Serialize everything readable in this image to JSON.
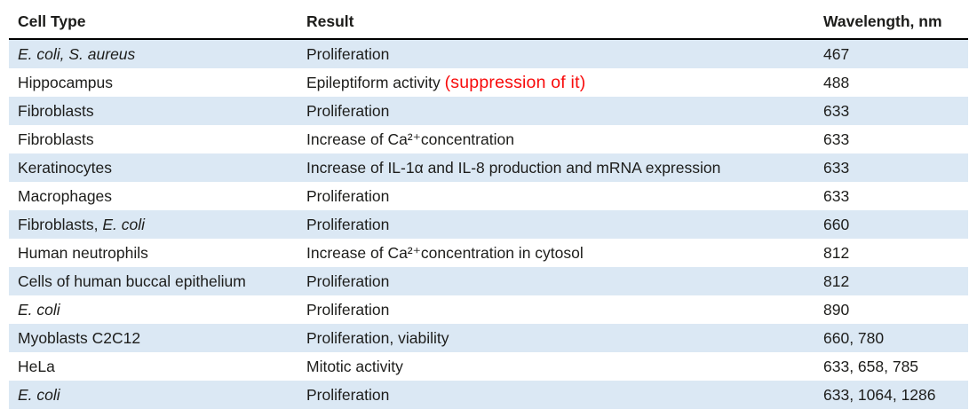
{
  "table": {
    "columns": [
      {
        "label": "Cell Type"
      },
      {
        "label": "Result"
      },
      {
        "label": "Wavelength, nm"
      }
    ],
    "rows": [
      {
        "cell_type": [
          {
            "t": "E. coli, S. aureus",
            "st": "i"
          }
        ],
        "result": [
          {
            "t": "Proliferation"
          }
        ],
        "wavelength": "467"
      },
      {
        "cell_type": [
          {
            "t": "Hippocampus"
          }
        ],
        "result": [
          {
            "t": "Epileptiform activity "
          },
          {
            "t": "(suppression of it)",
            "st": "red"
          }
        ],
        "wavelength": "488"
      },
      {
        "cell_type": [
          {
            "t": "Fibroblasts"
          }
        ],
        "result": [
          {
            "t": "Proliferation"
          }
        ],
        "wavelength": "633"
      },
      {
        "cell_type": [
          {
            "t": "Fibroblasts"
          }
        ],
        "result": [
          {
            "t": "Increase of Ca²⁺concentration"
          }
        ],
        "wavelength": "633"
      },
      {
        "cell_type": [
          {
            "t": "Keratinocytes"
          }
        ],
        "result": [
          {
            "t": "Increase of IL-1α and IL-8 production and mRNA expression"
          }
        ],
        "wavelength": "633"
      },
      {
        "cell_type": [
          {
            "t": "Macrophages"
          }
        ],
        "result": [
          {
            "t": "Proliferation"
          }
        ],
        "wavelength": "633"
      },
      {
        "cell_type": [
          {
            "t": "Fibroblasts, "
          },
          {
            "t": "E. coli",
            "st": "i"
          }
        ],
        "result": [
          {
            "t": "Proliferation"
          }
        ],
        "wavelength": "660"
      },
      {
        "cell_type": [
          {
            "t": "Human neutrophils"
          }
        ],
        "result": [
          {
            "t": "Increase of Ca²⁺concentration in cytosol"
          }
        ],
        "wavelength": "812"
      },
      {
        "cell_type": [
          {
            "t": "Cells of human buccal epithelium"
          }
        ],
        "result": [
          {
            "t": "Proliferation"
          }
        ],
        "wavelength": "812"
      },
      {
        "cell_type": [
          {
            "t": "E. coli",
            "st": "i"
          }
        ],
        "result": [
          {
            "t": "Proliferation"
          }
        ],
        "wavelength": "890"
      },
      {
        "cell_type": [
          {
            "t": "Myoblasts C2C12"
          }
        ],
        "result": [
          {
            "t": "Proliferation, viability"
          }
        ],
        "wavelength": "660, 780"
      },
      {
        "cell_type": [
          {
            "t": "HeLa"
          }
        ],
        "result": [
          {
            "t": "Mitotic activity"
          }
        ],
        "wavelength": "633, 658, 785"
      },
      {
        "cell_type": [
          {
            "t": "E. coli",
            "st": "i"
          }
        ],
        "result": [
          {
            "t": "Proliferation"
          }
        ],
        "wavelength": "633, 1064, 1286"
      }
    ]
  },
  "chart_data": {
    "type": "table",
    "title": "",
    "columns": [
      "Cell Type",
      "Result",
      "Wavelength, nm"
    ],
    "rows": [
      [
        "E. coli, S. aureus",
        "Proliferation",
        "467"
      ],
      [
        "Hippocampus",
        "Epileptiform activity (suppression of it)",
        "488"
      ],
      [
        "Fibroblasts",
        "Proliferation",
        "633"
      ],
      [
        "Fibroblasts",
        "Increase of Ca²⁺concentration",
        "633"
      ],
      [
        "Keratinocytes",
        "Increase of IL-1α and IL-8 production and mRNA expression",
        "633"
      ],
      [
        "Macrophages",
        "Proliferation",
        "633"
      ],
      [
        "Fibroblasts, E. coli",
        "Proliferation",
        "660"
      ],
      [
        "Human neutrophils",
        "Increase of Ca²⁺concentration in cytosol",
        "812"
      ],
      [
        "Cells of human buccal epithelium",
        "Proliferation",
        "812"
      ],
      [
        "E. coli",
        "Proliferation",
        "890"
      ],
      [
        "Myoblasts C2C12",
        "Proliferation, viability",
        "660, 780"
      ],
      [
        "HeLa",
        "Mitotic activity",
        "633, 658, 785"
      ],
      [
        "E. coli",
        "Proliferation",
        "633, 1064, 1286"
      ]
    ]
  },
  "colors": {
    "stripe": "#dbe8f4",
    "annotation_red": "#f80b0b",
    "text": "#1d1d1b",
    "header_rule": "#000000"
  }
}
